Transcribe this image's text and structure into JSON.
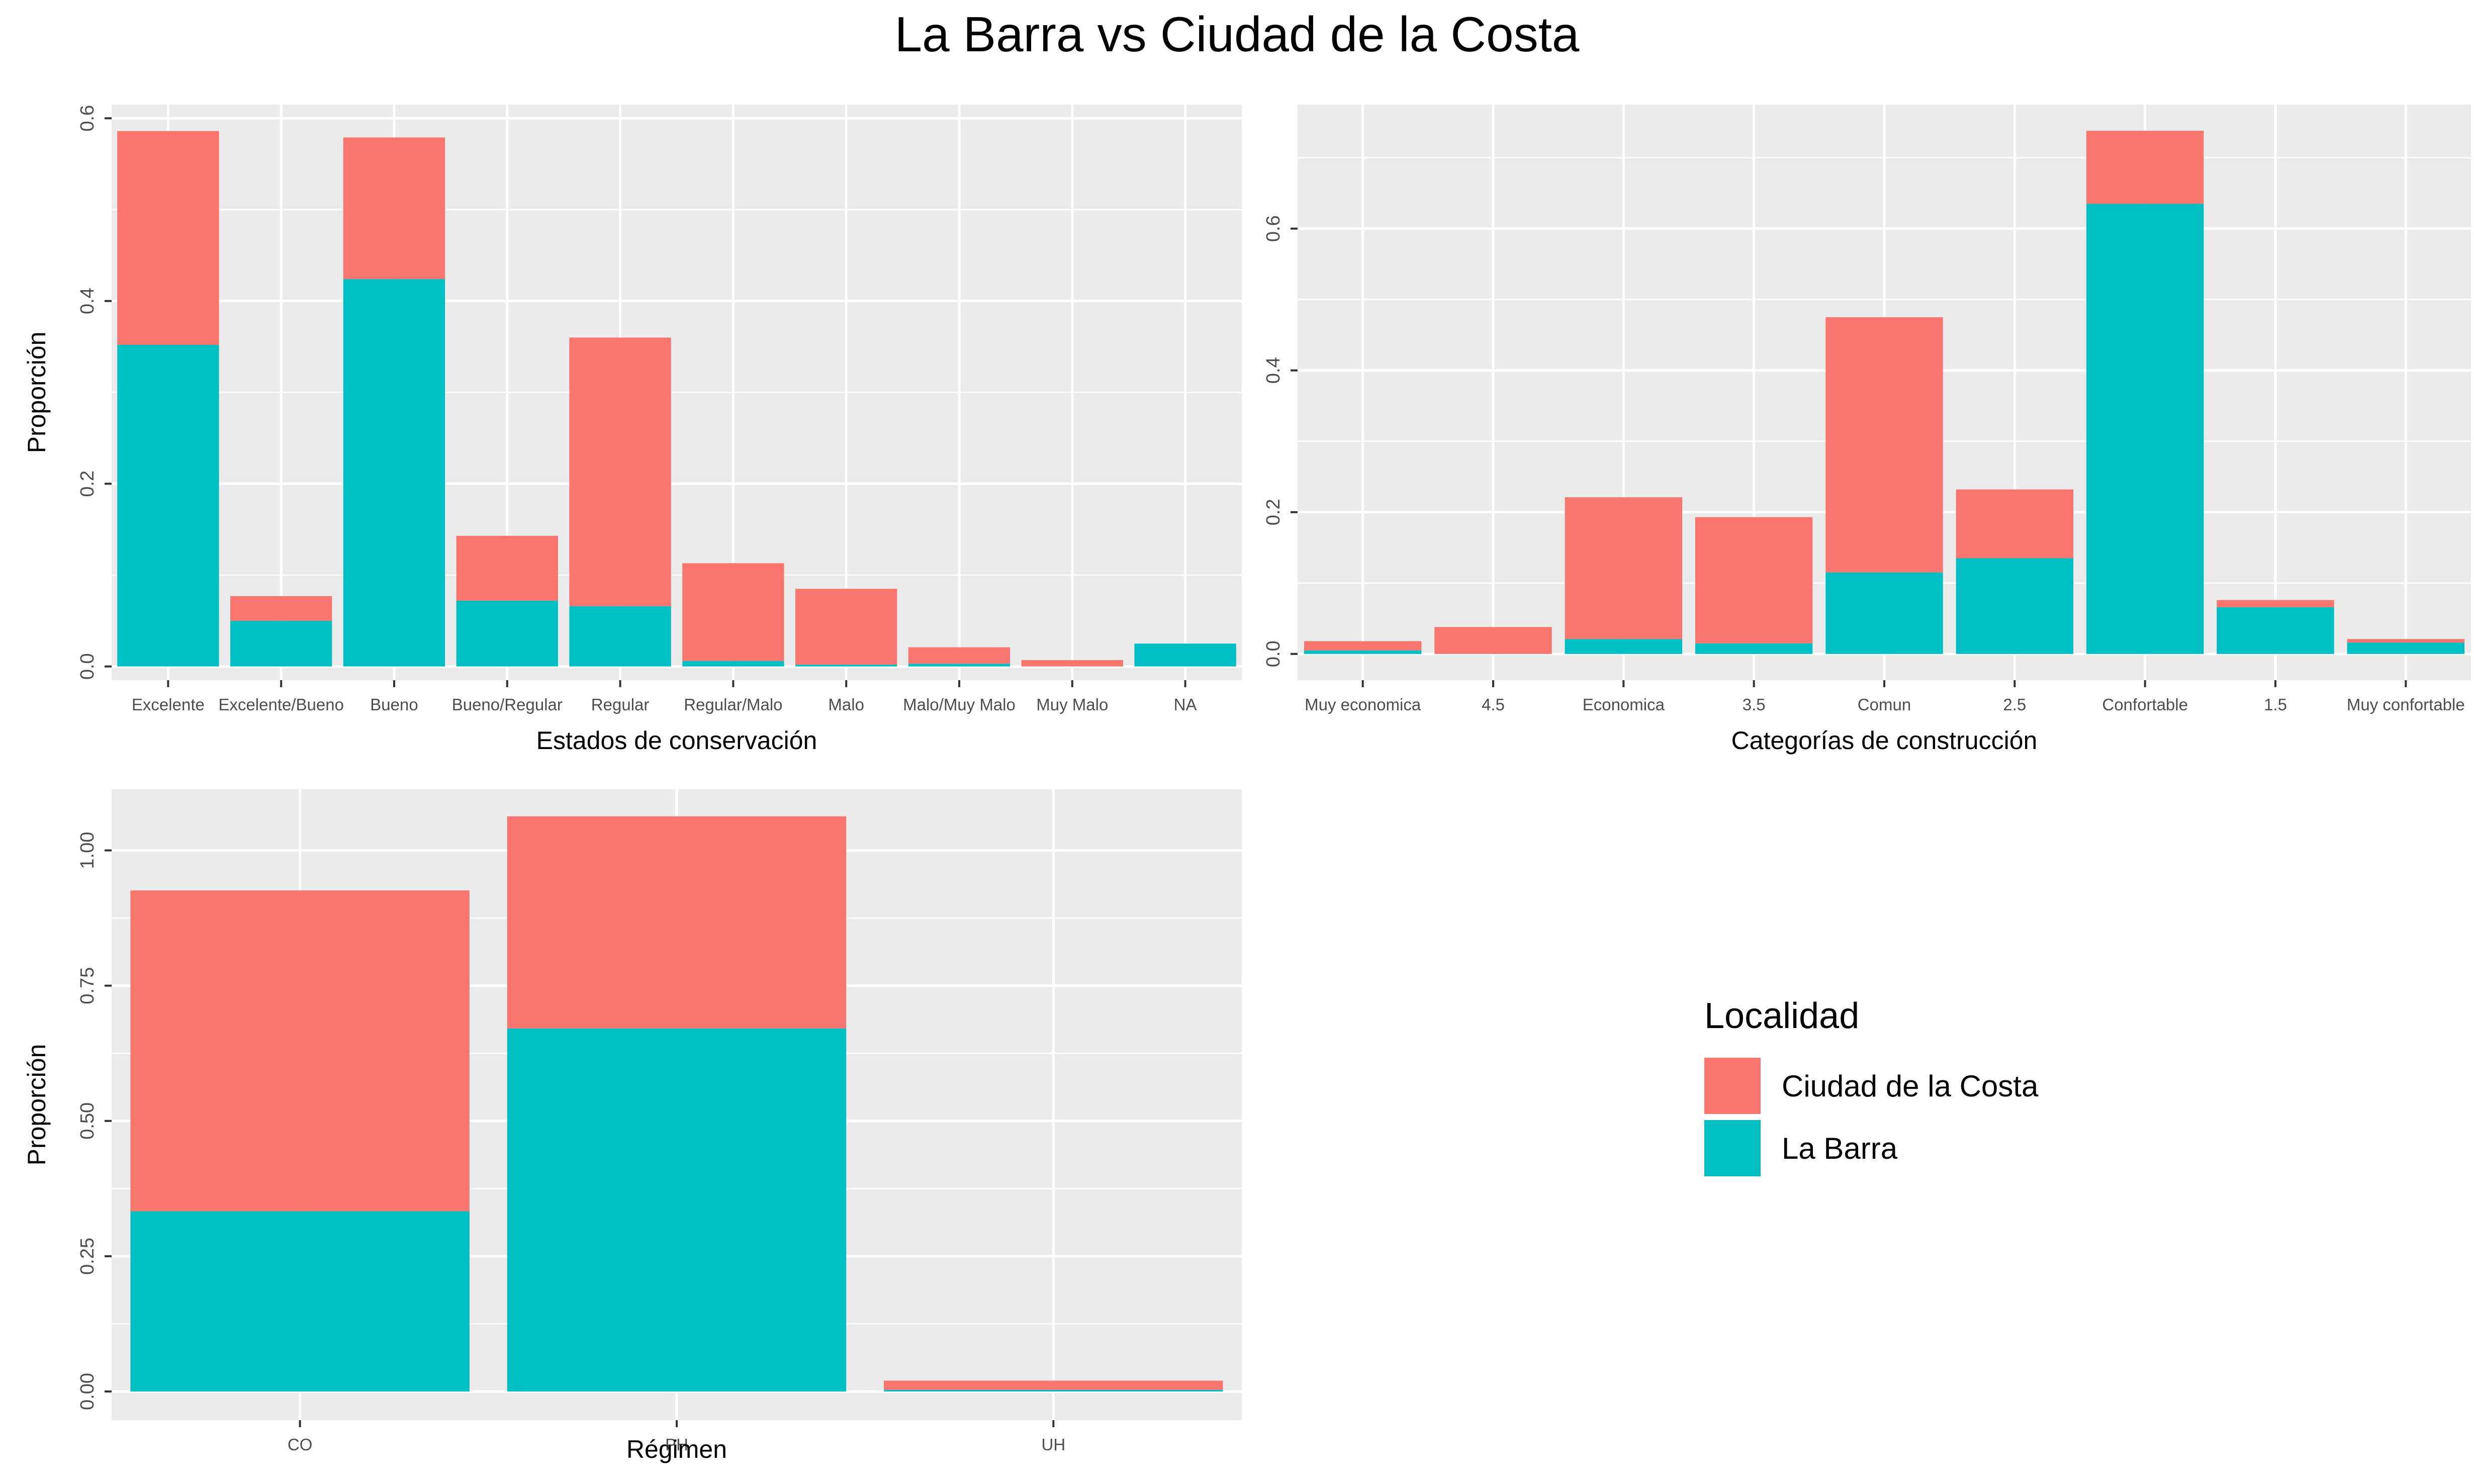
{
  "title": "La Barra vs Ciudad de la Costa",
  "colors": {
    "Ciudad de la Costa": "#F8766D",
    "La Barra": "#00BFC4",
    "panel": "#EBEBEB",
    "grid": "#FFFFFF"
  },
  "legend": {
    "title": "Localidad",
    "entries": [
      {
        "label": "Ciudad de la Costa",
        "color": "#F8766D"
      },
      {
        "label": "La Barra",
        "color": "#00BFC4"
      }
    ]
  },
  "chart_data": [
    {
      "type": "bar",
      "stacked": true,
      "xlabel": "Estados de conservación",
      "ylabel": "Proporción",
      "categories": [
        "Excelente",
        "Excelente/Bueno",
        "Bueno",
        "Bueno/Regular",
        "Regular",
        "Regular/Malo",
        "Malo",
        "Malo/Muy Malo",
        "Muy Malo",
        "NA"
      ],
      "ylim": [
        -0.015,
        0.615
      ],
      "yticks": [
        0.0,
        0.2,
        0.4,
        0.6
      ],
      "ytick_labels": [
        "0.0",
        "0.2",
        "0.4",
        "0.6"
      ],
      "series": [
        {
          "name": "La Barra",
          "values": [
            0.352,
            0.05,
            0.424,
            0.072,
            0.066,
            0.006,
            0.002,
            0.003,
            0.0,
            0.025
          ]
        },
        {
          "name": "Ciudad de la Costa",
          "values": [
            0.234,
            0.027,
            0.155,
            0.071,
            0.294,
            0.107,
            0.083,
            0.018,
            0.007,
            0.0
          ]
        }
      ]
    },
    {
      "type": "bar",
      "stacked": true,
      "xlabel": "Categorías de construcción",
      "ylabel": "",
      "categories": [
        "Muy economica",
        "4.5",
        "Economica",
        "3.5",
        "Comun",
        "2.5",
        "Confortable",
        "1.5",
        "Muy confortable"
      ],
      "ylim": [
        -0.037,
        0.775
      ],
      "yticks": [
        0.0,
        0.2,
        0.4,
        0.6
      ],
      "ytick_labels": [
        "0.0",
        "0.2",
        "0.4",
        "0.6"
      ],
      "series": [
        {
          "name": "La Barra",
          "values": [
            0.005,
            0.0,
            0.021,
            0.015,
            0.115,
            0.135,
            0.635,
            0.066,
            0.016
          ]
        },
        {
          "name": "Ciudad de la Costa",
          "values": [
            0.013,
            0.038,
            0.2,
            0.178,
            0.36,
            0.097,
            0.103,
            0.01,
            0.005
          ]
        }
      ]
    },
    {
      "type": "bar",
      "stacked": true,
      "xlabel": "Régimen",
      "ylabel": "Proporción",
      "categories": [
        "CO",
        "PH",
        "UH"
      ],
      "ylim": [
        -0.053,
        1.113
      ],
      "yticks": [
        0.0,
        0.25,
        0.5,
        0.75,
        1.0
      ],
      "ytick_labels": [
        "0.00",
        "0.25",
        "0.50",
        "0.75",
        "1.00"
      ],
      "series": [
        {
          "name": "La Barra",
          "values": [
            0.333,
            0.671,
            0.003
          ]
        },
        {
          "name": "Ciudad de la Costa",
          "values": [
            0.593,
            0.392,
            0.017
          ]
        }
      ]
    }
  ]
}
